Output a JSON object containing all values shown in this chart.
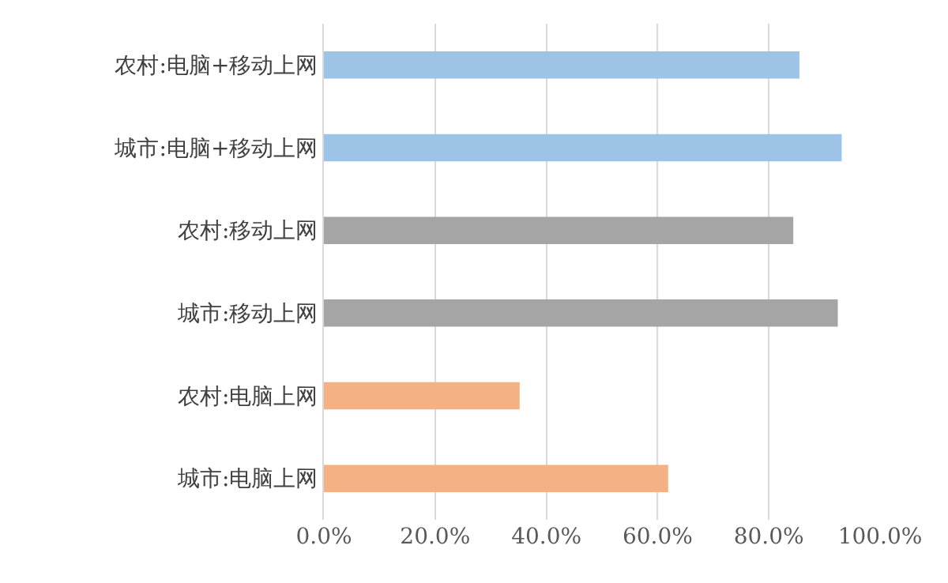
{
  "chart_data": {
    "type": "bar",
    "orientation": "horizontal",
    "categories": [
      "农村:电脑+移动上网",
      "城市:电脑+移动上网",
      "农村:移动上网",
      "城市:移动上网",
      "农村:电脑上网",
      "城市:电脑上网"
    ],
    "values": [
      85.5,
      93.1,
      84.4,
      92.4,
      35.2,
      61.9
    ],
    "colors": [
      "#9dc3e6",
      "#9dc3e6",
      "#a5a5a5",
      "#a5a5a5",
      "#f4b183",
      "#f4b183"
    ],
    "xlim": [
      0,
      100
    ],
    "xticks": [
      {
        "value": 0,
        "label": "0.0%"
      },
      {
        "value": 20,
        "label": "20.0%"
      },
      {
        "value": 40,
        "label": "40.0%"
      },
      {
        "value": 60,
        "label": "60.0%"
      },
      {
        "value": 80,
        "label": "80.0%"
      },
      {
        "value": 100,
        "label": "100.0%"
      }
    ],
    "grid": "x"
  }
}
